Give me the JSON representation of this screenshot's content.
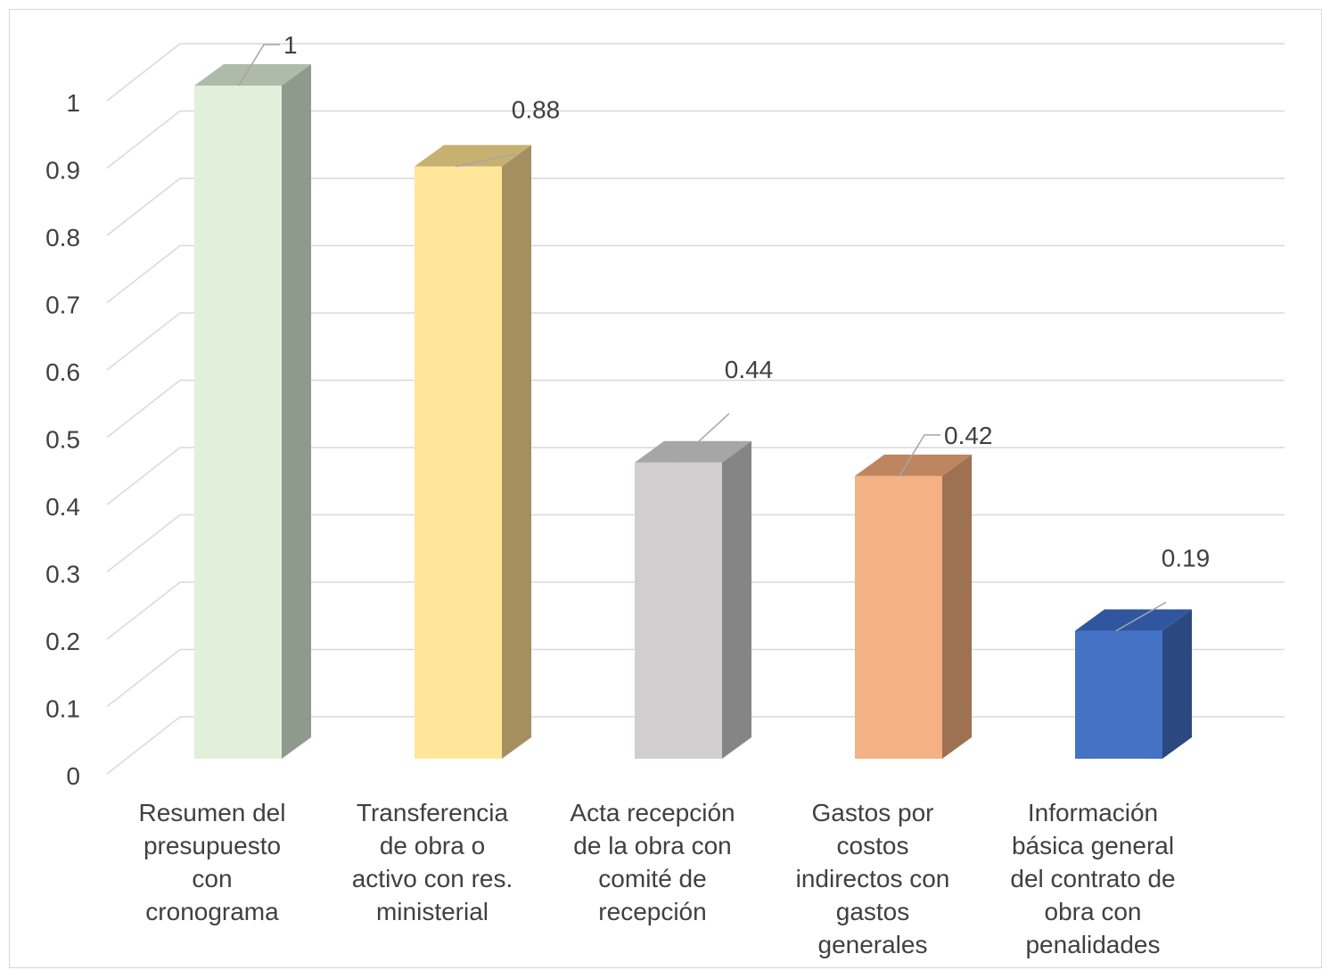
{
  "chart_data": {
    "type": "bar",
    "style": "3d-column",
    "categories": [
      [
        "Resumen del",
        "presupuesto",
        "con",
        "cronograma"
      ],
      [
        "Transferencia",
        "de obra o",
        "activo con res.",
        "ministerial"
      ],
      [
        "Acta recepción",
        "de la obra con",
        "comité de",
        "recepción"
      ],
      [
        "Gastos por",
        "costos",
        "indirectos con",
        "gastos",
        "generales"
      ],
      [
        "Información",
        "básica general",
        "del contrato de",
        "obra con",
        "penalidades"
      ]
    ],
    "values": [
      1,
      0.88,
      0.44,
      0.42,
      0.19
    ],
    "data_labels": [
      "1",
      "0.88",
      "0.44",
      "0.42",
      "0.19"
    ],
    "ylim": [
      0,
      1
    ],
    "yticks": [
      "0",
      "0.1",
      "0.2",
      "0.3",
      "0.4",
      "0.5",
      "0.6",
      "0.7",
      "0.8",
      "0.9",
      "1"
    ],
    "grid": true,
    "legend": "none",
    "colors": {
      "front": [
        "#e2efda",
        "#ffe699",
        "#d0cece",
        "#f4b183",
        "#4472c4"
      ],
      "side": [
        "#8e9a8b",
        "#a48f60",
        "#858585",
        "#9d7152",
        "#2b4880"
      ],
      "top": [
        "#aebba8",
        "#c7b170",
        "#a6a6a6",
        "#bd8661",
        "#2f569e"
      ],
      "grid": "#d9d9d9",
      "text": "#404040"
    }
  }
}
